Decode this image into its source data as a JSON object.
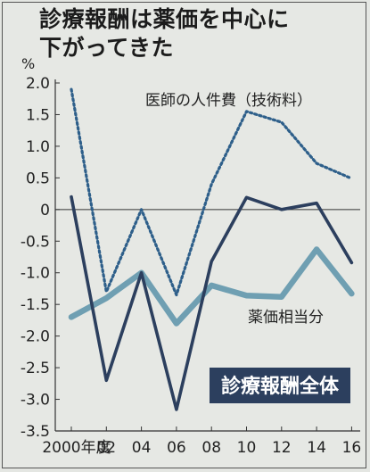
{
  "title": {
    "line1": "診療報酬は薬価を中心に",
    "line2": "下がってきた"
  },
  "unit": "%",
  "chart_data": {
    "type": "line",
    "title": "診療報酬は薬価を中心に下がってきた",
    "ylabel": "%",
    "ylim": [
      -3.5,
      2.0
    ],
    "yticks": [
      "2.0",
      "1.5",
      "1.0",
      "0.5",
      "0",
      "-0.5",
      "-1.0",
      "-1.5",
      "-2.0",
      "-2.5",
      "-3.0",
      "-3.5"
    ],
    "ytick_values": [
      2.0,
      1.5,
      1.0,
      0.5,
      0,
      -0.5,
      -1.0,
      -1.5,
      -2.0,
      -2.5,
      -3.0,
      -3.5
    ],
    "x": [
      2000,
      2002,
      2004,
      2006,
      2008,
      2010,
      2012,
      2014,
      2016
    ],
    "xtick_labels": [
      "2000年度",
      "02",
      "04",
      "06",
      "08",
      "10",
      "12",
      "14",
      "16"
    ],
    "series": [
      {
        "name": "医師の人件費（技術料）",
        "style": "dotted",
        "color": "#2e5f8a",
        "values": [
          1.9,
          -1.3,
          0.0,
          -1.35,
          0.4,
          1.55,
          1.38,
          0.73,
          0.49
        ]
      },
      {
        "name": "薬価相当分",
        "style": "solid-light",
        "color": "#6f9fb2",
        "values": [
          -1.7,
          -1.4,
          -1.0,
          -1.8,
          -1.2,
          -1.36,
          -1.38,
          -0.63,
          -1.33
        ]
      },
      {
        "name": "診療報酬全体",
        "style": "solid-dark",
        "color": "#2c3f5e",
        "values": [
          0.2,
          -2.7,
          -1.0,
          -3.16,
          -0.82,
          0.19,
          0.0,
          0.1,
          -0.84
        ]
      }
    ],
    "grid": false,
    "zero_line": true
  }
}
